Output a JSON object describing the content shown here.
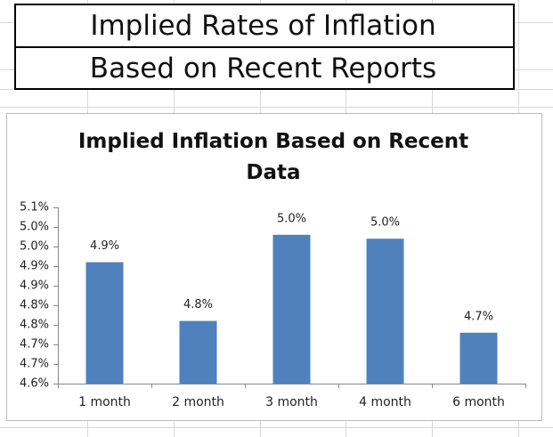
{
  "header": {
    "lines": [
      "Implied Rates of Inflation",
      "Based on Recent Reports"
    ]
  },
  "chart_data": {
    "type": "bar",
    "title": "Implied Inflation Based on Recent Data",
    "categories": [
      "1 month",
      "2 month",
      "3 month",
      "4 month",
      "6 month"
    ],
    "values": [
      4.91,
      4.76,
      4.98,
      4.97,
      4.73
    ],
    "value_labels": [
      "4.9%",
      "4.8%",
      "5.0%",
      "5.0%",
      "4.7%"
    ],
    "color": "#4f81bd",
    "ylim": [
      4.6,
      5.05
    ],
    "yticks": [
      {
        "value": 4.6,
        "label": "4.6%"
      },
      {
        "value": 4.65,
        "label": "4.7%"
      },
      {
        "value": 4.7,
        "label": "4.7%"
      },
      {
        "value": 4.75,
        "label": "4.8%"
      },
      {
        "value": 4.8,
        "label": "4.8%"
      },
      {
        "value": 4.85,
        "label": "4.9%"
      },
      {
        "value": 4.9,
        "label": "4.9%"
      },
      {
        "value": 4.95,
        "label": "5.0%"
      },
      {
        "value": 5.0,
        "label": "5.0%"
      },
      {
        "value": 5.05,
        "label": "5.1%"
      }
    ],
    "grid": false
  }
}
